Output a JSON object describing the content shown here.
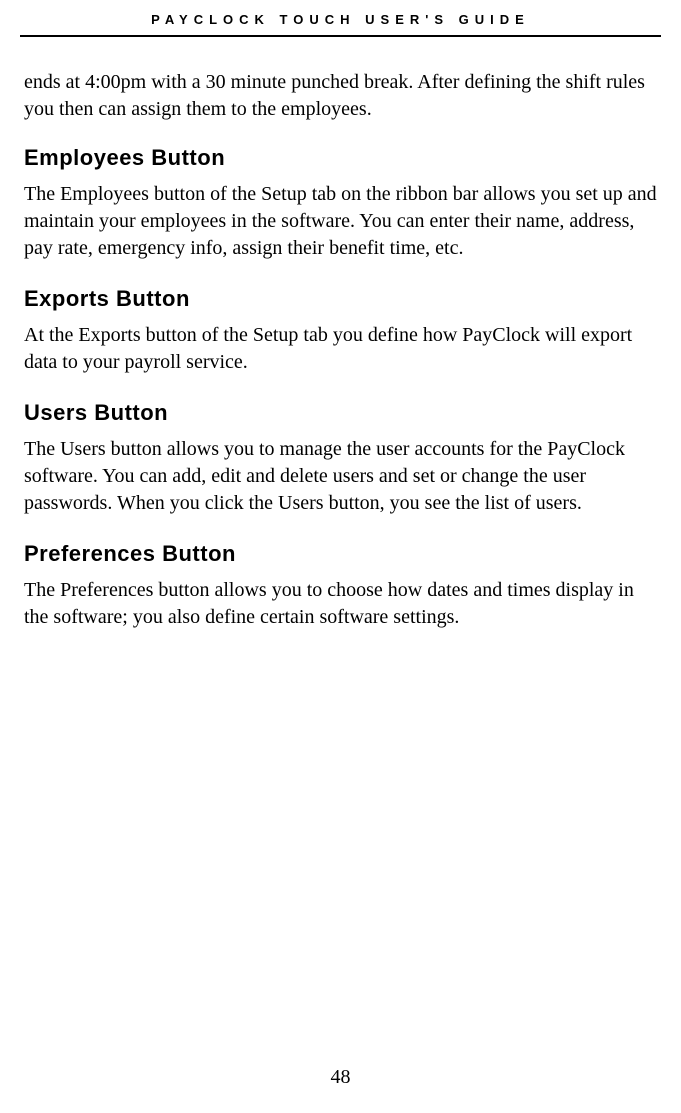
{
  "header": {
    "title": "PAYCLOCK TOUCH USER'S GUIDE"
  },
  "intro": {
    "text": "ends at 4:00pm with a 30 minute punched break. After defining the shift rules you then can assign them to the employees."
  },
  "sections": [
    {
      "heading": "Employees Button",
      "body": "The Employees button of the Setup tab on the ribbon bar allows you set up and maintain your employees in the software. You can enter their name, address, pay rate, emergency info, assign their benefit time, etc."
    },
    {
      "heading": "Exports Button",
      "body": "At the Exports button of the Setup tab you define how PayClock will export data to your payroll service."
    },
    {
      "heading": "Users Button",
      "body": "The Users button allows you to manage the user accounts for the PayClock software. You can add, edit and delete users and set or change the user passwords. When you click the Users button, you see the list of users."
    },
    {
      "heading": "Preferences Button",
      "body": "The Preferences button allows you to choose how dates and times display in the software; you also define certain software settings."
    }
  ],
  "pageNumber": "48",
  "styling": {
    "pageWidth": 681,
    "pageHeight": 1113,
    "backgroundColor": "#ffffff",
    "textColor": "#000000",
    "headerFontFamily": "Arial, Helvetica, sans-serif",
    "headerFontSize": 13,
    "headerLetterSpacing": 6,
    "headerBorderColor": "#000000",
    "headerBorderWidth": 2,
    "sectionHeadingFontFamily": "Arial, Helvetica, sans-serif",
    "sectionHeadingFontSize": 22,
    "sectionHeadingFontWeight": "bold",
    "bodyFontFamily": "Georgia, Times New Roman, serif",
    "bodyFontSize": 20,
    "bodyLineHeight": 1.35,
    "pageNumberFontSize": 20
  }
}
